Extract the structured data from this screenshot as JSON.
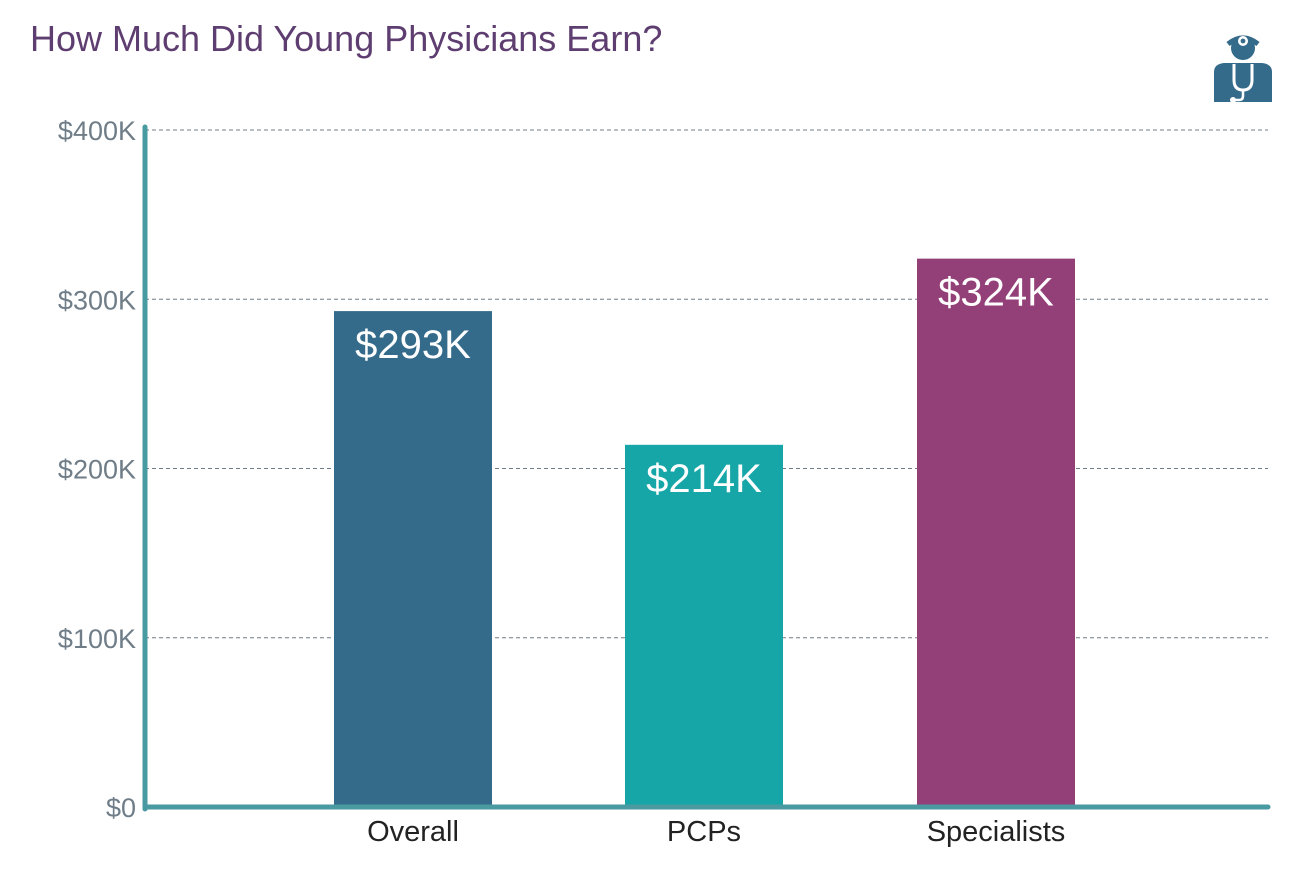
{
  "chart_data": {
    "type": "bar",
    "title": "How Much Did Young Physicians Earn?",
    "xlabel": "",
    "ylabel": "",
    "categories": [
      "Overall",
      "PCPs",
      "Specialists"
    ],
    "values": [
      293,
      214,
      324
    ],
    "data_labels": [
      "$293K",
      "$214K",
      "$324K"
    ],
    "bar_colors": [
      "#356b8a",
      "#17a6a8",
      "#934079"
    ],
    "ylim": [
      0,
      400
    ],
    "yticks": [
      0,
      100,
      200,
      300,
      400
    ],
    "ytick_labels": [
      "$0",
      "$100K",
      "$200K",
      "$300K",
      "$400K"
    ],
    "grid": true,
    "grid_style": "dashed",
    "legend": "none"
  },
  "colors": {
    "title": "#5e3e70",
    "axis": "#4a9aa2",
    "grid": "#6f7d88",
    "icon": "#356b8a"
  },
  "icon": {
    "name": "doctor-icon"
  }
}
